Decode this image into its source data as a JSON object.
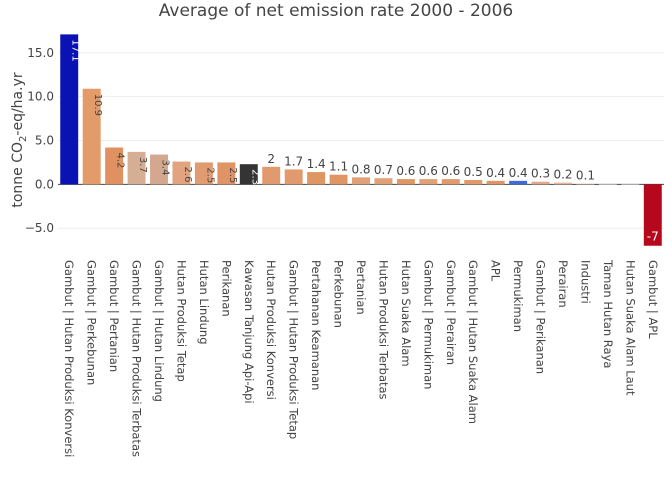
{
  "chart_data": {
    "type": "bar",
    "title": "Average of net emission rate 2000 - 2006",
    "ylabel_prefix": "tonne CO",
    "ylabel_sub": "2",
    "ylabel_suffix": "-eq/ha.yr",
    "ylim": [
      -7.6,
      17.6
    ],
    "yticks": [
      -5.0,
      0.0,
      5.0,
      10.0,
      15.0
    ],
    "ytick_labels": [
      "−5.0",
      "0.0",
      "5.0",
      "10.0",
      "15.0"
    ],
    "grid": true,
    "categories": [
      "Gambut | Hutan Produksi Konversi",
      "Gambut | Perkebunan",
      "Gambut | Pertanian",
      "Gambut | Hutan Produksi Terbatas",
      "Gambut | Hutan Lindung",
      "Hutan Produksi Tetap",
      "Hutan Lindung",
      "Perikanan",
      "Kawasan Tanjung Api-Api",
      "Hutan Produksi Konversi",
      "Gambut | Hutan Produksi Tetap",
      "Pertahanan Keamanan",
      "Perkebunan",
      "Pertanian",
      "Hutan Produksi Terbatas",
      "Hutan Suaka Alam",
      "Gambut | Permukiman",
      "Gambut | Perairan",
      "Gambut | Hutan Suaka Alam",
      "APL",
      "Permukiman",
      "Gambut | Perikanan",
      "Perairan",
      "Industri",
      "Taman Hutan Raya",
      "Hutan Suaka Alam Laut",
      "Gambut | APL"
    ],
    "values": [
      17.1,
      10.9,
      4.2,
      3.7,
      3.4,
      2.6,
      2.5,
      2.5,
      2.3,
      2.0,
      1.7,
      1.4,
      1.1,
      0.8,
      0.7,
      0.6,
      0.6,
      0.6,
      0.5,
      0.4,
      0.4,
      0.3,
      0.2,
      0.1,
      0.02,
      0.01,
      -7.0
    ],
    "labels": [
      "17.1",
      "10.9",
      "4.2",
      "3.7",
      "3.4",
      "2.6",
      "2.5",
      "2.5",
      "2.3",
      "2",
      "1.7",
      "1.4",
      "1.1",
      "0.8",
      "0.7",
      "0.6",
      "0.6",
      "0.6",
      "0.5",
      "0.4",
      "0.4",
      "0.3",
      "0.2",
      "0.1",
      "",
      "",
      "-7"
    ],
    "label_inside": [
      true,
      true,
      true,
      true,
      true,
      true,
      true,
      true,
      true,
      false,
      false,
      false,
      false,
      false,
      false,
      false,
      false,
      false,
      false,
      false,
      false,
      false,
      false,
      false,
      false,
      false,
      true
    ],
    "colors": [
      "#0a12b4",
      "#e39b6a",
      "#e09161",
      "#d6ae93",
      "#d3a88e",
      "#e2a47e",
      "#e09b70",
      "#e09466",
      "#343434",
      "#e19a6d",
      "#e19a6d",
      "#e09564",
      "#e09564",
      "#e2a077",
      "#e2a077",
      "#e09564",
      "#e2a077",
      "#e09a6b",
      "#e09a6b",
      "#e09564",
      "#3d6bdb",
      "#e2a88a",
      "#e7b79c",
      "#efd2c2",
      "#e8e0da",
      "#e5e0dc",
      "#b5081c"
    ]
  }
}
